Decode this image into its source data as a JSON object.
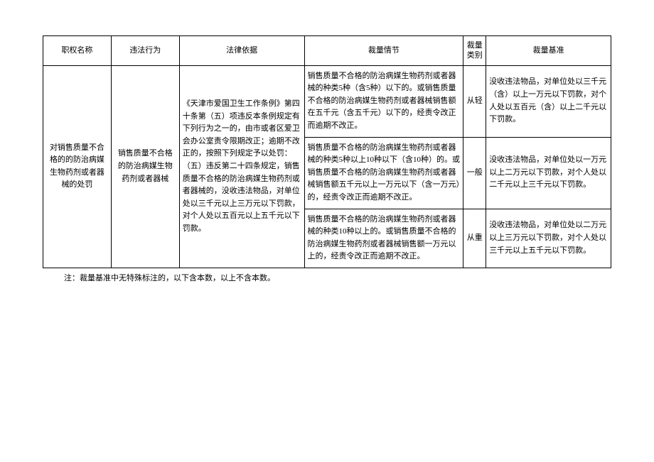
{
  "table": {
    "headers": {
      "name": "职权名称",
      "violation": "违法行为",
      "legal": "法律依据",
      "circumstance": "裁量情节",
      "category": "裁量类别",
      "standard": "裁量基准"
    },
    "row": {
      "name": "对销售质量不合格的的防治病媒生物药剂或者器械的处罚",
      "violation": "销售质量不合格的防治病媒生物药剂或者器械",
      "legal": "《天津市爱国卫生工作条例》第四十条第（五）项违反本条例规定有下列行为之一的，由市或者区爱卫会办公室责令限期改正；逾期不改正的，按照下列规定予以处罚：（五）违反第二十四条规定，销售质量不合格的防治病媒生物药剂或者器械的，没收违法物品，对单位处以三千元以上三万元以下罚款，对个人处以五百元以上五千元以下罚款。",
      "details": [
        {
          "circumstance": "销售质量不合格的防治病媒生物药剂或者器械的种类5种（含5种）以下的。或销售质量不合格的防治病媒生物药剂或者器械销售额在五千元（含五千元）以下的，经责令改正而逾期不改正。",
          "category": "从轻",
          "standard": "没收违法物品，对单位处以三千元（含）以上一万元以下罚款，对个人处以五百元（含）以上二千元以下罚款。"
        },
        {
          "circumstance": "销售质量不合格的防治病媒生物药剂或者器械的种类5种以上10种以下（含10种）的。或销售质量不合格的防治病媒生物药剂或者器械销售额五千元以上一万元以下（含一万元）的，经责令改正而逾期不改正。",
          "category": "一般",
          "standard": "没收违法物品，对单位处以一万元以上二万元以下罚款，对个人处以二千元以上三千元以下罚款。"
        },
        {
          "circumstance": "销售质量不合格的防治病媒生物药剂或者器械的种类10种以上的。或销售质量不合格的防治病媒生物药剂或者器械销售额一万元以上的，经责令改正而逾期不改正。",
          "category": "从重",
          "standard": "没收违法物品，对单位处以二万元以上三万元以下罚款，对个人处以三千元以上五千元以下罚款。"
        }
      ]
    },
    "footnote": "注：裁量基准中无特殊标注的，以下含本数，以上不含本数。"
  }
}
